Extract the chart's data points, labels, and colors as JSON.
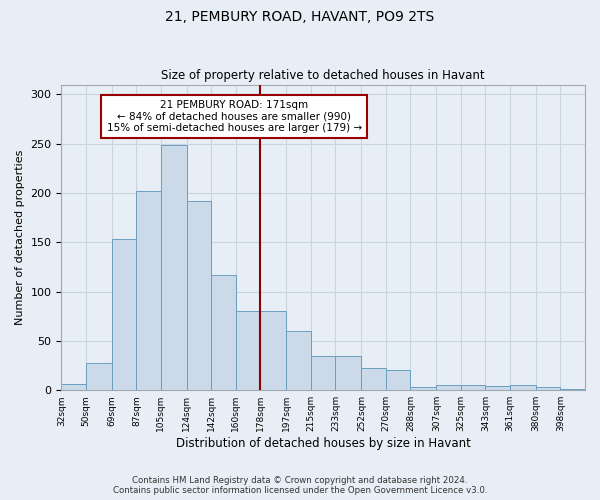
{
  "title1": "21, PEMBURY ROAD, HAVANT, PO9 2TS",
  "title2": "Size of property relative to detached houses in Havant",
  "xlabel": "Distribution of detached houses by size in Havant",
  "ylabel": "Number of detached properties",
  "bar_color": "#ccd9e8",
  "bar_edge_color": "#6a9fc0",
  "grid_color": "#c8d4de",
  "background_color": "#e8eef5",
  "fig_background": "#e8eef5",
  "vline_color": "#8b0000",
  "annotation_text": "21 PEMBURY ROAD: 171sqm\n← 84% of detached houses are smaller (990)\n15% of semi-detached houses are larger (179) →",
  "annotation_box_color": "#ffffff",
  "annotation_border_color": "#990000",
  "footer_text": "Contains HM Land Registry data © Crown copyright and database right 2024.\nContains public sector information licensed under the Open Government Licence v3.0.",
  "bin_edges": [
    32,
    50,
    69,
    87,
    105,
    124,
    142,
    160,
    178,
    197,
    215,
    233,
    252,
    270,
    288,
    307,
    325,
    343,
    361,
    380,
    398,
    416
  ],
  "counts": [
    6,
    28,
    153,
    202,
    249,
    192,
    117,
    80,
    80,
    60,
    35,
    35,
    23,
    20,
    3,
    5,
    5,
    4,
    5,
    3,
    1
  ],
  "vline_bin_index": 7,
  "ylim": [
    0,
    310
  ],
  "yticks": [
    0,
    50,
    100,
    150,
    200,
    250,
    300
  ],
  "tick_labels": [
    "32sqm",
    "50sqm",
    "69sqm",
    "87sqm",
    "105sqm",
    "124sqm",
    "142sqm",
    "160sqm",
    "178sqm",
    "197sqm",
    "215sqm",
    "233sqm",
    "252sqm",
    "270sqm",
    "288sqm",
    "307sqm",
    "325sqm",
    "343sqm",
    "361sqm",
    "380sqm",
    "398sqm"
  ]
}
